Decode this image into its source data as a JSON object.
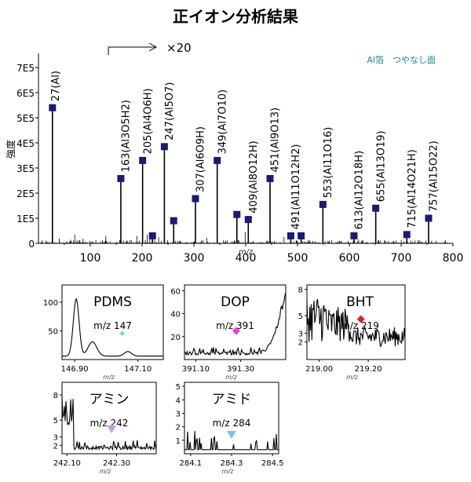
{
  "page_title": "正イオン分析結果",
  "chart_data": [
    {
      "type": "line",
      "panel": "main",
      "subtitle": "Al箔　つやなし面",
      "xlabel": "m/z",
      "ylabel": "強度",
      "xlim": [
        0,
        800
      ],
      "ylim": [
        0,
        750000
      ],
      "xticks": [
        100,
        200,
        300,
        400,
        500,
        600,
        700,
        800
      ],
      "yticks": [
        {
          "value": 0,
          "label": "0"
        },
        {
          "value": 100000,
          "label": "1E5"
        },
        {
          "value": 200000,
          "label": "2E5"
        },
        {
          "value": 300000,
          "label": "3E5"
        },
        {
          "value": 400000,
          "label": "4E5"
        },
        {
          "value": 500000,
          "label": "5E5"
        },
        {
          "value": 600000,
          "label": "6E5"
        },
        {
          "value": 700000,
          "label": "7E5"
        }
      ],
      "scale_annotation": {
        "label": "×20",
        "from_x": 135
      },
      "peaks": [
        {
          "x": 27,
          "y": 540000,
          "label": "27(Al)"
        },
        {
          "x": 159,
          "y": 258000
        },
        {
          "x": 163,
          "label": "163(Al3O5H2)"
        },
        {
          "x": 201,
          "y": 330000
        },
        {
          "x": 205,
          "label": "205(Al4O6H)"
        },
        {
          "x": 220,
          "y": 30000
        },
        {
          "x": 243,
          "y": 385000
        },
        {
          "x": 247,
          "label": "247(Al5O7)"
        },
        {
          "x": 261,
          "y": 90000
        },
        {
          "x": 303,
          "y": 178000
        },
        {
          "x": 307,
          "label": "307(Al6O9H)"
        },
        {
          "x": 345,
          "y": 330000
        },
        {
          "x": 349,
          "label": "349(Al7O10)"
        },
        {
          "x": 383,
          "y": 115000
        },
        {
          "x": 405,
          "y": 95000
        },
        {
          "x": 409,
          "label": "409(Al8O12H)"
        },
        {
          "x": 447,
          "y": 258000
        },
        {
          "x": 451,
          "label": "451(Al9O13)"
        },
        {
          "x": 487,
          "y": 30000
        },
        {
          "x": 491,
          "label": "491(Al11O12H2)"
        },
        {
          "x": 507,
          "y": 30000
        },
        {
          "x": 549,
          "y": 155000
        },
        {
          "x": 553,
          "label": "553(Al11O16)"
        },
        {
          "x": 609,
          "y": 30000
        },
        {
          "x": 613,
          "label": "613(Al12O18H)"
        },
        {
          "x": 651,
          "y": 140000
        },
        {
          "x": 655,
          "label": "655(Al13O19)"
        },
        {
          "x": 711,
          "y": 35000
        },
        {
          "x": 715,
          "label": "715(Al14O21H)"
        },
        {
          "x": 753,
          "y": 100000
        },
        {
          "x": 757,
          "label": "757(Al15O22)"
        }
      ]
    },
    {
      "type": "line",
      "panel": "inset",
      "title": "PDMS",
      "marker_label": "m/z 147",
      "marker": {
        "x": 147.05,
        "y": 42,
        "shape": "star",
        "color": "#33d6d6"
      },
      "xlabel": "m/z",
      "xlim": [
        146.86,
        147.18
      ],
      "ylim": [
        0,
        130
      ],
      "xticks": [
        {
          "value": 146.9,
          "label": "146.90"
        },
        {
          "value": 147.1,
          "label": "147.10"
        }
      ],
      "yticks": [
        {
          "value": 50,
          "label": "50"
        },
        {
          "value": 100,
          "label": "100"
        }
      ]
    },
    {
      "type": "line",
      "panel": "inset",
      "title": "DOP",
      "marker_label": "m/z 391",
      "marker": {
        "x": 391.28,
        "y": 25,
        "shape": "diamond",
        "color": "#e040e0"
      },
      "xlabel": "m/z",
      "xlim": [
        391.05,
        391.5
      ],
      "ylim": [
        0,
        65
      ],
      "xticks": [
        {
          "value": 391.1,
          "label": "391.10"
        },
        {
          "value": 391.3,
          "label": "391.30"
        }
      ],
      "yticks": [
        {
          "value": 20,
          "label": "20"
        },
        {
          "value": 40,
          "label": "40"
        },
        {
          "value": 60,
          "label": "60"
        }
      ]
    },
    {
      "type": "line",
      "panel": "inset",
      "title": "BHT",
      "marker_label": "m/z 219",
      "marker": {
        "x": 219.17,
        "y": 4.6,
        "shape": "diamond",
        "color": "#e02020"
      },
      "xlabel": "m/z",
      "xlim": [
        218.95,
        219.35
      ],
      "ylim": [
        0,
        8.5
      ],
      "xticks": [
        {
          "value": 219.0,
          "label": "219.00"
        },
        {
          "value": 219.2,
          "label": "219.20"
        }
      ],
      "yticks": [
        {
          "value": 2,
          "label": "2"
        },
        {
          "value": 3,
          "label": "3"
        },
        {
          "value": 5,
          "label": "5"
        },
        {
          "value": 8,
          "label": "8"
        }
      ]
    },
    {
      "type": "line",
      "panel": "inset",
      "title": "アミン",
      "marker_label": "m/z 242",
      "marker": {
        "x": 242.28,
        "y": 3.9,
        "shape": "triangle",
        "color": "#c8a0e8"
      },
      "xlabel": "m/z",
      "xlim": [
        242.08,
        242.46
      ],
      "ylim": [
        1,
        9.5
      ],
      "xticks": [
        {
          "value": 242.1,
          "label": "242.10"
        },
        {
          "value": 242.3,
          "label": "242.30"
        }
      ],
      "yticks": [
        {
          "value": 2,
          "label": "2"
        },
        {
          "value": 3,
          "label": "3"
        },
        {
          "value": 5,
          "label": "5"
        },
        {
          "value": 8,
          "label": "8"
        }
      ]
    },
    {
      "type": "line",
      "panel": "inset",
      "title": "アミド",
      "marker_label": "m/z 284",
      "marker": {
        "x": 284.3,
        "y": 1.4,
        "shape": "triangle",
        "color": "#80c0f0"
      },
      "xlabel": "m/z",
      "xlim": [
        284.07,
        284.53
      ],
      "ylim": [
        0,
        5.3
      ],
      "xticks": [
        {
          "value": 284.1,
          "label": "284.1"
        },
        {
          "value": 284.3,
          "label": "284.3"
        },
        {
          "value": 284.5,
          "label": "284.5"
        }
      ],
      "yticks": [
        {
          "value": 1,
          "label": "1"
        },
        {
          "value": 2,
          "label": "2"
        },
        {
          "value": 3,
          "label": "3"
        },
        {
          "value": 4,
          "label": "4"
        },
        {
          "value": 5,
          "label": "5"
        }
      ]
    }
  ]
}
